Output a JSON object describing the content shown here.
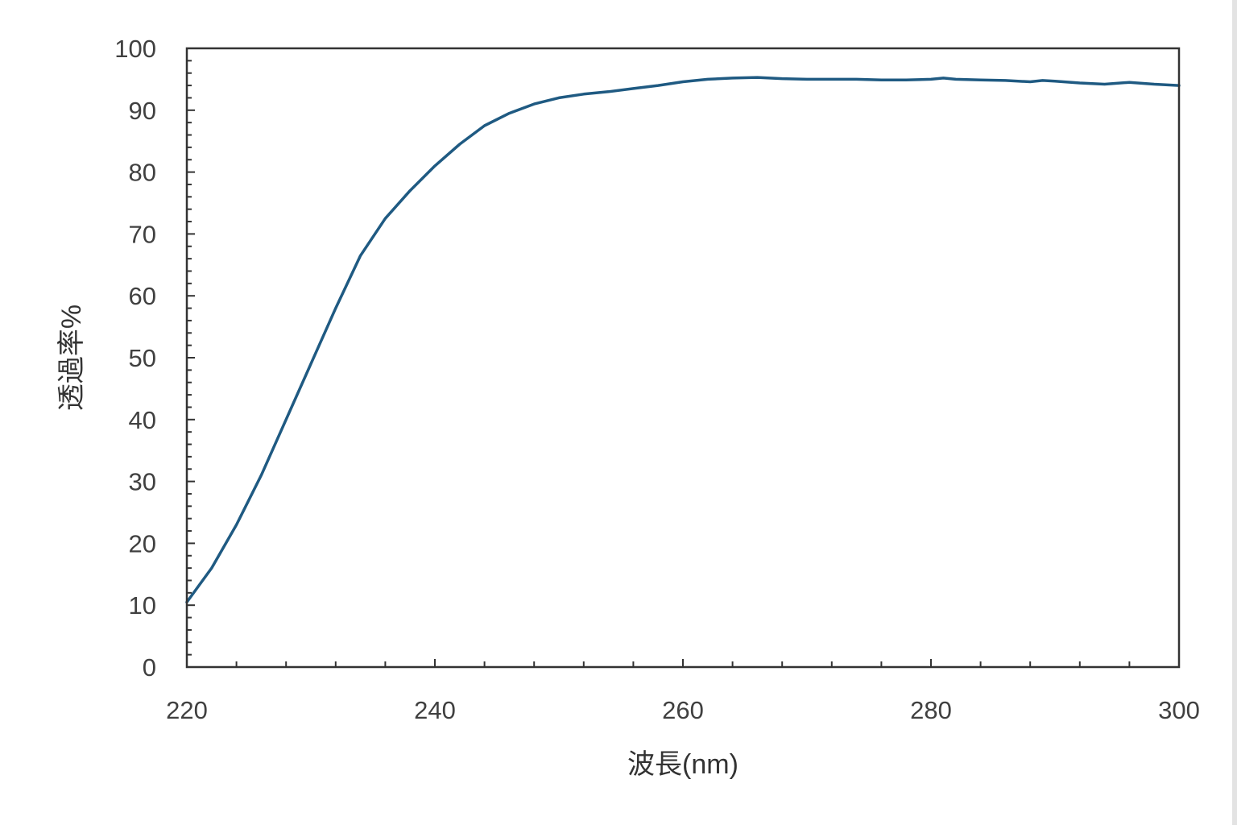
{
  "chart_data": {
    "type": "line",
    "xlabel": "波長(nm)",
    "ylabel": "透過率%",
    "xlim": [
      220,
      300
    ],
    "ylim": [
      0,
      100
    ],
    "x_ticks": [
      "220",
      "240",
      "260",
      "280",
      "300"
    ],
    "y_ticks": [
      "0",
      "10",
      "20",
      "30",
      "40",
      "50",
      "60",
      "70",
      "80",
      "90",
      "100"
    ],
    "x_minor_step": 4,
    "y_minor_step": 2,
    "grid": false,
    "legend": "none",
    "series": [
      {
        "color": "#1f5a82",
        "x": [
          220,
          222,
          224,
          226,
          228,
          230,
          232,
          234,
          236,
          238,
          240,
          242,
          244,
          246,
          248,
          250,
          252,
          254,
          256,
          258,
          260,
          262,
          264,
          266,
          268,
          270,
          272,
          274,
          276,
          278,
          280,
          281,
          282,
          284,
          286,
          288,
          289,
          290,
          292,
          294,
          296,
          298,
          300
        ],
        "y": [
          10.5,
          16,
          23,
          31,
          40,
          49,
          58,
          66.5,
          72.5,
          77,
          81,
          84.5,
          87.5,
          89.5,
          91,
          92,
          92.6,
          93,
          93.5,
          94,
          94.6,
          95,
          95.2,
          95.3,
          95.1,
          95,
          95,
          95,
          94.9,
          94.9,
          95,
          95.2,
          95,
          94.9,
          94.8,
          94.6,
          94.8,
          94.7,
          94.4,
          94.2,
          94.5,
          94.2,
          94
        ]
      }
    ]
  }
}
